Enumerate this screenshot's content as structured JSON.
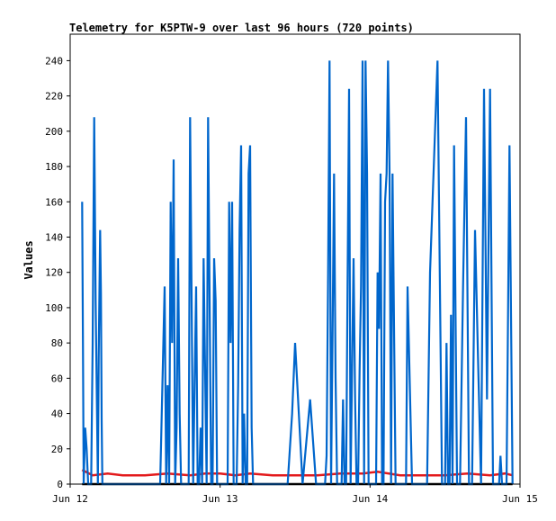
{
  "chart_data": {
    "type": "line",
    "title": "Telemetry for K5PTW-9 over last 96 hours (720 points)",
    "xlabel": "",
    "ylabel": "Values",
    "xlim": [
      0,
      3
    ],
    "ylim": [
      0,
      255
    ],
    "x_tick_values": [
      0,
      1,
      2,
      3
    ],
    "x_tick_labels": [
      "Jun 12",
      "Jun 13",
      "Jun 14",
      "Jun 15"
    ],
    "y_ticks": [
      0,
      20,
      40,
      60,
      80,
      100,
      120,
      140,
      160,
      180,
      200,
      220,
      240
    ],
    "grid": false,
    "legend": "none",
    "colors": {
      "blue": "#0066cc",
      "red": "#e31a1c",
      "black": "#000000"
    },
    "series": [
      {
        "color": "#e31a1c",
        "x": [
          0.08,
          0.15,
          0.25,
          0.35,
          0.5,
          0.65,
          0.8,
          0.9,
          1.0,
          1.1,
          1.2,
          1.35,
          1.5,
          1.65,
          1.8,
          1.95,
          2.05,
          2.2,
          2.35,
          2.5,
          2.65,
          2.8,
          2.9,
          2.95
        ],
        "y": [
          8,
          5,
          6,
          5,
          5,
          6,
          5,
          6,
          6,
          5,
          6,
          5,
          5,
          5,
          6,
          6,
          7,
          5,
          5,
          5,
          6,
          5,
          6,
          5
        ]
      },
      {
        "color": "#000000",
        "x": [
          0.08,
          2.95
        ],
        "y": [
          0,
          0
        ]
      },
      {
        "color": "#0066cc",
        "x": [
          0.08,
          0.085,
          0.09,
          0.1,
          0.11,
          0.12,
          0.13,
          0.14,
          0.15,
          0.16,
          0.17,
          0.185,
          0.19,
          0.2,
          0.205,
          0.21,
          0.215,
          0.22,
          0.225,
          0.23,
          0.24,
          0.245,
          0.25,
          0.26,
          0.27,
          0.28,
          0.3,
          0.35,
          0.4,
          0.45,
          0.5,
          0.55,
          0.6,
          0.63,
          0.64,
          0.65,
          0.66,
          0.67,
          0.68,
          0.69,
          0.7,
          0.71,
          0.72,
          0.73,
          0.74,
          0.75,
          0.76,
          0.77,
          0.79,
          0.8,
          0.82,
          0.83,
          0.84,
          0.85,
          0.86,
          0.87,
          0.88,
          0.89,
          0.9,
          0.91,
          0.92,
          0.93,
          0.94,
          0.95,
          0.96,
          0.97,
          0.98,
          0.99,
          1.0,
          1.01,
          1.02,
          1.03,
          1.04,
          1.05,
          1.06,
          1.07,
          1.08,
          1.09,
          1.1,
          1.11,
          1.12,
          1.13,
          1.14,
          1.15,
          1.16,
          1.17,
          1.18,
          1.19,
          1.2,
          1.21,
          1.22,
          1.23,
          1.25,
          1.28,
          1.3,
          1.35,
          1.4,
          1.43,
          1.45,
          1.48,
          1.5,
          1.55,
          1.6,
          1.62,
          1.64,
          1.66,
          1.68,
          1.7,
          1.71,
          1.72,
          1.73,
          1.74,
          1.75,
          1.76,
          1.77,
          1.78,
          1.79,
          1.8,
          1.81,
          1.82,
          1.83,
          1.84,
          1.85,
          1.86,
          1.87,
          1.88,
          1.89,
          1.9,
          1.91,
          1.92,
          1.93,
          1.94,
          1.95,
          1.96,
          1.97,
          1.98,
          1.99,
          2.0,
          2.01,
          2.02,
          2.03,
          2.04,
          2.05,
          2.06,
          2.07,
          2.08,
          2.09,
          2.1,
          2.11,
          2.12,
          2.13,
          2.14,
          2.15,
          2.16,
          2.17,
          2.18,
          2.19,
          2.2,
          2.21,
          2.22,
          2.23,
          2.24,
          2.25,
          2.28,
          2.3,
          2.35,
          2.38,
          2.4,
          2.45,
          2.48,
          2.5,
          2.51,
          2.52,
          2.53,
          2.54,
          2.55,
          2.56,
          2.58,
          2.6,
          2.62,
          2.64,
          2.66,
          2.68,
          2.7,
          2.72,
          2.74,
          2.76,
          2.78,
          2.8,
          2.82,
          2.84,
          2.85,
          2.86,
          2.87,
          2.88,
          2.89,
          2.9,
          2.91,
          2.92,
          2.93,
          2.94,
          2.95
        ],
        "y": [
          160,
          80,
          0,
          32,
          20,
          0,
          0,
          0,
          80,
          208,
          104,
          0,
          72,
          144,
          108,
          36,
          0,
          0,
          0,
          0,
          0,
          0,
          0,
          0,
          0,
          0,
          0,
          0,
          0,
          0,
          0,
          0,
          0,
          112,
          0,
          56,
          0,
          160,
          80,
          184,
          0,
          32,
          128,
          40,
          0,
          0,
          0,
          0,
          0,
          208,
          0,
          56,
          112,
          0,
          0,
          32,
          0,
          128,
          64,
          0,
          208,
          104,
          0,
          0,
          128,
          104,
          0,
          0,
          0,
          0,
          0,
          0,
          0,
          0,
          160,
          80,
          160,
          0,
          0,
          0,
          56,
          144,
          192,
          0,
          40,
          0,
          0,
          176,
          192,
          32,
          0,
          0,
          0,
          0,
          0,
          0,
          0,
          0,
          0,
          40,
          80,
          0,
          48,
          24,
          0,
          0,
          0,
          0,
          16,
          120,
          240,
          0,
          88,
          176,
          60,
          0,
          0,
          0,
          0,
          48,
          0,
          0,
          112,
          224,
          0,
          64,
          128,
          48,
          0,
          0,
          64,
          112,
          240,
          0,
          240,
          176,
          0,
          0,
          0,
          0,
          0,
          0,
          120,
          88,
          176,
          0,
          0,
          160,
          176,
          240,
          176,
          0,
          176,
          88,
          0,
          0,
          0,
          0,
          0,
          0,
          0,
          0,
          112,
          0,
          0,
          0,
          0,
          120,
          240,
          0,
          0,
          80,
          0,
          0,
          96,
          0,
          192,
          0,
          0,
          112,
          208,
          0,
          0,
          144,
          72,
          0,
          224,
          48,
          224,
          0,
          0,
          0,
          0,
          16,
          0,
          0,
          0,
          0,
          96,
          192,
          96,
          0
        ]
      }
    ]
  }
}
